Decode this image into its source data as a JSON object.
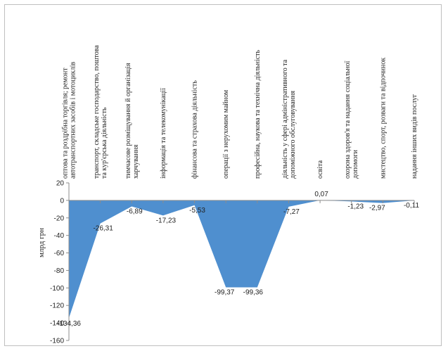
{
  "chart_data": {
    "type": "area",
    "ylabel": "млрд грн",
    "ylim": [
      -160,
      20
    ],
    "ytick_step": 20,
    "ytick_labels": [
      "20",
      "0",
      "-20",
      "-40",
      "-60",
      "-80",
      "-100",
      "-120",
      "-140",
      "-160"
    ],
    "grid": false,
    "area_color": "#4f8fcf",
    "categories": [
      "оптова та роздрібна торгівля; ремонт автотранспортних засобів і мотоциклів",
      "транспорт, складське господарство, поштова та кур'єрська діяльність",
      "тимчасове розміщування й організація харчування",
      "інформація та телекомунікації",
      "фінансова та страхова діяльність",
      "операції з нерухомим майном",
      "професійна, наукова та технічна діяльність",
      "діяльність у сфері адміністративного та допоміжного обслуговування",
      "освіта",
      "охорона здоров'я та надання соціальної допомоги",
      "мистецтво, спорт, розваги та відпочинок",
      "надання інших видів послуг"
    ],
    "values": [
      -134.36,
      -26.31,
      -6.89,
      -17.23,
      -5.53,
      -99.37,
      -99.36,
      -7.27,
      0.07,
      -1.23,
      -2.97,
      -0.11
    ],
    "value_labels": [
      "-134,36",
      "-26,31",
      "-6,89",
      "-17,23",
      "-5,53",
      "-99,37",
      "-99,36",
      "-7,27",
      "0,07",
      "-1,23",
      "-2,97",
      "-0,11"
    ]
  }
}
